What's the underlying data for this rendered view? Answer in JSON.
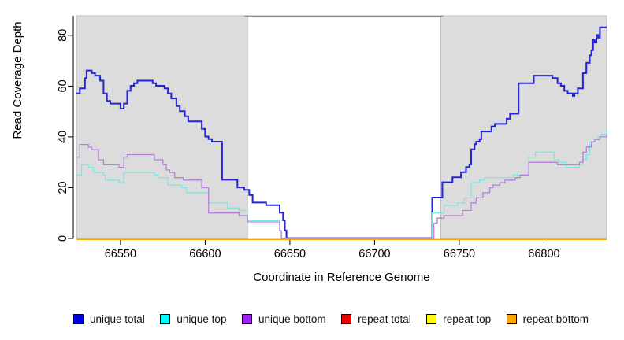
{
  "figure_title": "",
  "chart_data": {
    "type": "line",
    "subtype": "step-after",
    "title": "",
    "xlabel": "Coordinate in Reference Genome",
    "ylabel": "Read Coverage Depth",
    "xlim": [
      66524,
      66837
    ],
    "ylim": [
      0,
      87.7
    ],
    "xticks": [
      66550,
      66600,
      66650,
      66700,
      66750,
      66800
    ],
    "yticks": [
      0,
      20,
      40,
      60,
      80
    ],
    "grid": false,
    "legend_position": "bottom",
    "background_color": "#ffffff",
    "shaded_regions": {
      "color": "#dcdcdc",
      "border_color": "#b0b0b0",
      "x_ranges": [
        [
          66524,
          66625
        ],
        [
          66739,
          66837
        ]
      ]
    },
    "gap_top_border_color": "#8f8f8f",
    "axis_color": "#000000",
    "series": [
      {
        "name": "unique total",
        "color": "#2323d9",
        "legend_color": "#0000ee",
        "points": [
          [
            66524,
            57
          ],
          [
            66526,
            59
          ],
          [
            66529,
            63
          ],
          [
            66530,
            66
          ],
          [
            66533,
            65
          ],
          [
            66535,
            64
          ],
          [
            66538,
            62
          ],
          [
            66540,
            57
          ],
          [
            66542,
            54
          ],
          [
            66544,
            53
          ],
          [
            66549,
            53
          ],
          [
            66550,
            51
          ],
          [
            66552,
            53
          ],
          [
            66554,
            58
          ],
          [
            66556,
            60
          ],
          [
            66558,
            61
          ],
          [
            66560,
            62
          ],
          [
            66567,
            62
          ],
          [
            66569,
            61
          ],
          [
            66571,
            60
          ],
          [
            66576,
            59
          ],
          [
            66578,
            57
          ],
          [
            66580,
            55
          ],
          [
            66583,
            52
          ],
          [
            66585,
            50
          ],
          [
            66588,
            48
          ],
          [
            66590,
            46
          ],
          [
            66596,
            46
          ],
          [
            66598,
            43
          ],
          [
            66600,
            40
          ],
          [
            66602,
            39
          ],
          [
            66604,
            38
          ],
          [
            66609,
            38
          ],
          [
            66610,
            23
          ],
          [
            66619,
            20
          ],
          [
            66623,
            19
          ],
          [
            66626,
            17
          ],
          [
            66628,
            14
          ],
          [
            66636,
            13
          ],
          [
            66643,
            13
          ],
          [
            66644,
            10
          ],
          [
            66646,
            7
          ],
          [
            66647,
            3
          ],
          [
            66648,
            0
          ],
          [
            66734,
            16
          ],
          [
            66740,
            22
          ],
          [
            66746,
            24
          ],
          [
            66751,
            26
          ],
          [
            66754,
            28
          ],
          [
            66756,
            29
          ],
          [
            66757,
            35
          ],
          [
            66759,
            37
          ],
          [
            66760,
            38
          ],
          [
            66762,
            39
          ],
          [
            66763,
            42
          ],
          [
            66769,
            44
          ],
          [
            66771,
            45
          ],
          [
            66778,
            47
          ],
          [
            66780,
            49
          ],
          [
            66785,
            61
          ],
          [
            66794,
            64
          ],
          [
            66805,
            63
          ],
          [
            66808,
            61
          ],
          [
            66810,
            60
          ],
          [
            66812,
            58
          ],
          [
            66814,
            57
          ],
          [
            66817,
            56
          ],
          [
            66818,
            57
          ],
          [
            66820,
            59
          ],
          [
            66823,
            65
          ],
          [
            66825,
            69
          ],
          [
            66827,
            72
          ],
          [
            66828,
            74
          ],
          [
            66829,
            78
          ],
          [
            66830,
            77
          ],
          [
            66831,
            80
          ],
          [
            66832,
            79
          ],
          [
            66833,
            83
          ],
          [
            66837,
            83
          ]
        ]
      },
      {
        "name": "unique top",
        "color": "#7de7e3",
        "legend_color": "#00ffff",
        "points": [
          [
            66524,
            25
          ],
          [
            66527,
            29
          ],
          [
            66531,
            28
          ],
          [
            66534,
            26
          ],
          [
            66540,
            25
          ],
          [
            66541,
            23
          ],
          [
            66549,
            22
          ],
          [
            66552,
            26
          ],
          [
            66568,
            26
          ],
          [
            66570,
            25
          ],
          [
            66572,
            24
          ],
          [
            66578,
            21
          ],
          [
            66586,
            20
          ],
          [
            66589,
            18
          ],
          [
            66602,
            14
          ],
          [
            66613,
            12
          ],
          [
            66620,
            11
          ],
          [
            66625,
            7
          ],
          [
            66643,
            7
          ],
          [
            66644,
            3
          ],
          [
            66645,
            0
          ],
          [
            66734,
            10
          ],
          [
            66741,
            13
          ],
          [
            66749,
            14
          ],
          [
            66753,
            16
          ],
          [
            66757,
            22
          ],
          [
            66762,
            23
          ],
          [
            66765,
            24
          ],
          [
            66782,
            25
          ],
          [
            66791,
            32
          ],
          [
            66795,
            34
          ],
          [
            66806,
            31
          ],
          [
            66809,
            30
          ],
          [
            66813,
            28
          ],
          [
            66819,
            28
          ],
          [
            66821,
            29
          ],
          [
            66823,
            31
          ],
          [
            66825,
            33
          ],
          [
            66827,
            38
          ],
          [
            66830,
            39
          ],
          [
            66832,
            40
          ],
          [
            66834,
            41
          ],
          [
            66837,
            42
          ]
        ]
      },
      {
        "name": "unique bottom",
        "color": "#b77fdc",
        "legend_color": "#a020f0",
        "points": [
          [
            66524,
            32
          ],
          [
            66526,
            37
          ],
          [
            66531,
            36
          ],
          [
            66533,
            35
          ],
          [
            66537,
            31
          ],
          [
            66540,
            29
          ],
          [
            66549,
            28
          ],
          [
            66552,
            32
          ],
          [
            66554,
            33
          ],
          [
            66569,
            33
          ],
          [
            66570,
            31
          ],
          [
            66575,
            29
          ],
          [
            66577,
            27
          ],
          [
            66579,
            26
          ],
          [
            66582,
            24
          ],
          [
            66587,
            23
          ],
          [
            66598,
            20
          ],
          [
            66602,
            10
          ],
          [
            66615,
            10
          ],
          [
            66620,
            9
          ],
          [
            66625,
            6.5
          ],
          [
            66643,
            6.5
          ],
          [
            66644,
            3
          ],
          [
            66645,
            0
          ],
          [
            66735,
            6
          ],
          [
            66737,
            8
          ],
          [
            66741,
            9
          ],
          [
            66752,
            11
          ],
          [
            66757,
            14
          ],
          [
            66760,
            16
          ],
          [
            66764,
            18
          ],
          [
            66768,
            20
          ],
          [
            66770,
            21
          ],
          [
            66774,
            22
          ],
          [
            66777,
            23
          ],
          [
            66783,
            24
          ],
          [
            66786,
            25
          ],
          [
            66791,
            30
          ],
          [
            66805,
            30
          ],
          [
            66808,
            29
          ],
          [
            66817,
            29
          ],
          [
            66821,
            30
          ],
          [
            66823,
            34
          ],
          [
            66825,
            36
          ],
          [
            66828,
            38
          ],
          [
            66830,
            39
          ],
          [
            66833,
            40
          ],
          [
            66837,
            41
          ]
        ]
      },
      {
        "name": "repeat total",
        "color": "#ee0000",
        "legend_color": "#ee0000",
        "points": [
          [
            66524,
            0
          ],
          [
            66837,
            0
          ]
        ]
      },
      {
        "name": "repeat top",
        "color": "#ffff00",
        "legend_color": "#ffff00",
        "points": [
          [
            66524,
            0
          ],
          [
            66837,
            0
          ]
        ]
      },
      {
        "name": "repeat bottom",
        "color": "#ffa500",
        "legend_color": "#ffa500",
        "points": [
          [
            66524,
            0
          ],
          [
            66837,
            0
          ]
        ]
      }
    ]
  }
}
